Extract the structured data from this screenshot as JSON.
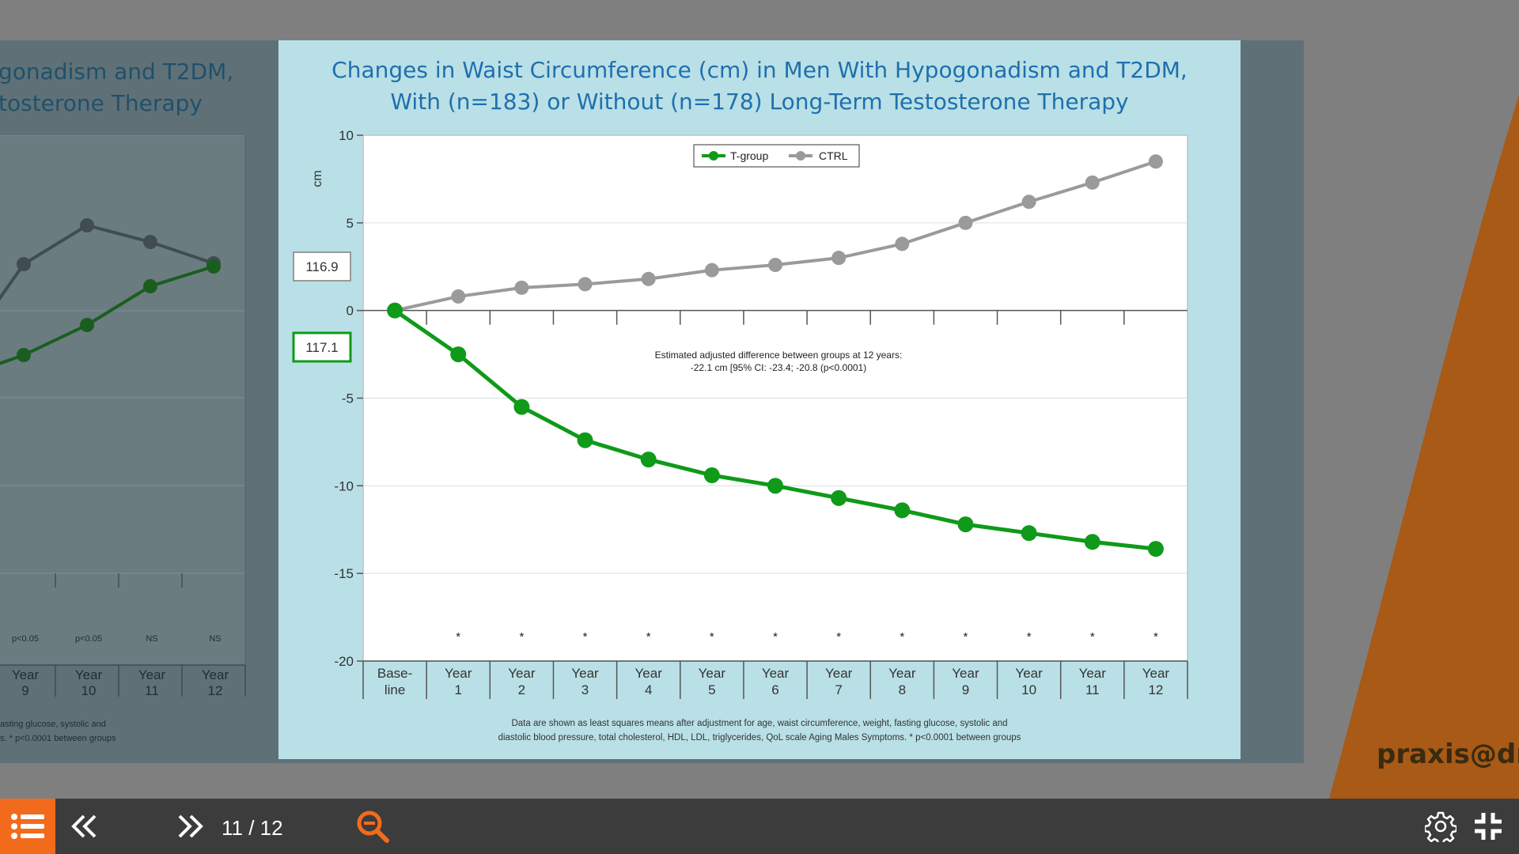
{
  "slide": {
    "title_lines": [
      "Changes in Waist Circumference (cm) in Men With Hypogonadism and T2DM,",
      "With (n=183) or Without (n=178) Long-Term Testosterone Therapy"
    ],
    "baseline_labels": {
      "ctrl": "116.9",
      "tgroup": "117.1"
    },
    "annotation_lines": [
      "Estimated adjusted difference between groups at 12 years:",
      "-22.1 cm [95% CI: -23.4; -20.8 (p<0.0001)"
    ],
    "footnote_lines": [
      "Data are shown as least squares means after adjustment for age, waist circumference, weight, fasting glucose, systolic and",
      "diastolic blood pressure, total cholesterol, HDL, LDL, triglycerides, QoL scale Aging Males Symptoms. * p<0.0001 between groups"
    ]
  },
  "chart_data": {
    "type": "line",
    "ylabel": "cm",
    "ylim": [
      -20,
      10
    ],
    "yticks": [
      10,
      5,
      0,
      -5,
      -10,
      -15,
      -20
    ],
    "categories": [
      [
        "Base-",
        "line"
      ],
      [
        "Year",
        "1"
      ],
      [
        "Year",
        "2"
      ],
      [
        "Year",
        "3"
      ],
      [
        "Year",
        "4"
      ],
      [
        "Year",
        "5"
      ],
      [
        "Year",
        "6"
      ],
      [
        "Year",
        "7"
      ],
      [
        "Year",
        "8"
      ],
      [
        "Year",
        "9"
      ],
      [
        "Year",
        "10"
      ],
      [
        "Year",
        "11"
      ],
      [
        "Year",
        "12"
      ]
    ],
    "legend_position": "top-center",
    "significance_marker": "*",
    "series": [
      {
        "name": "T-group",
        "color": "#0f9a1a",
        "values": [
          0,
          -2.5,
          -5.5,
          -7.4,
          -8.5,
          -9.4,
          -10.0,
          -10.7,
          -11.4,
          -12.2,
          -12.7,
          -13.2,
          -13.6
        ]
      },
      {
        "name": "CTRL",
        "color": "#9a9a9a",
        "values": [
          0,
          0.8,
          1.3,
          1.5,
          1.8,
          2.3,
          2.6,
          3.0,
          3.8,
          5.0,
          6.2,
          7.3,
          8.5
        ]
      }
    ]
  },
  "background_slide": {
    "title_lines": [
      "gonadism and T2DM,",
      "tosterone Therapy"
    ],
    "pvalues": [
      "p<0.05",
      "p<0.05",
      "NS",
      "NS"
    ],
    "categories": [
      [
        "Year",
        "9"
      ],
      [
        "Year",
        "10"
      ],
      [
        "Year",
        "11"
      ],
      [
        "Year",
        "12"
      ]
    ],
    "note_lines": [
      "asting glucose, systolic and",
      "s. * p<0.0001 between groups"
    ]
  },
  "branding": {
    "email": "praxis@dr"
  },
  "toolbar": {
    "page_indicator": "11 / 12",
    "accent_color": "#f26b1d"
  }
}
